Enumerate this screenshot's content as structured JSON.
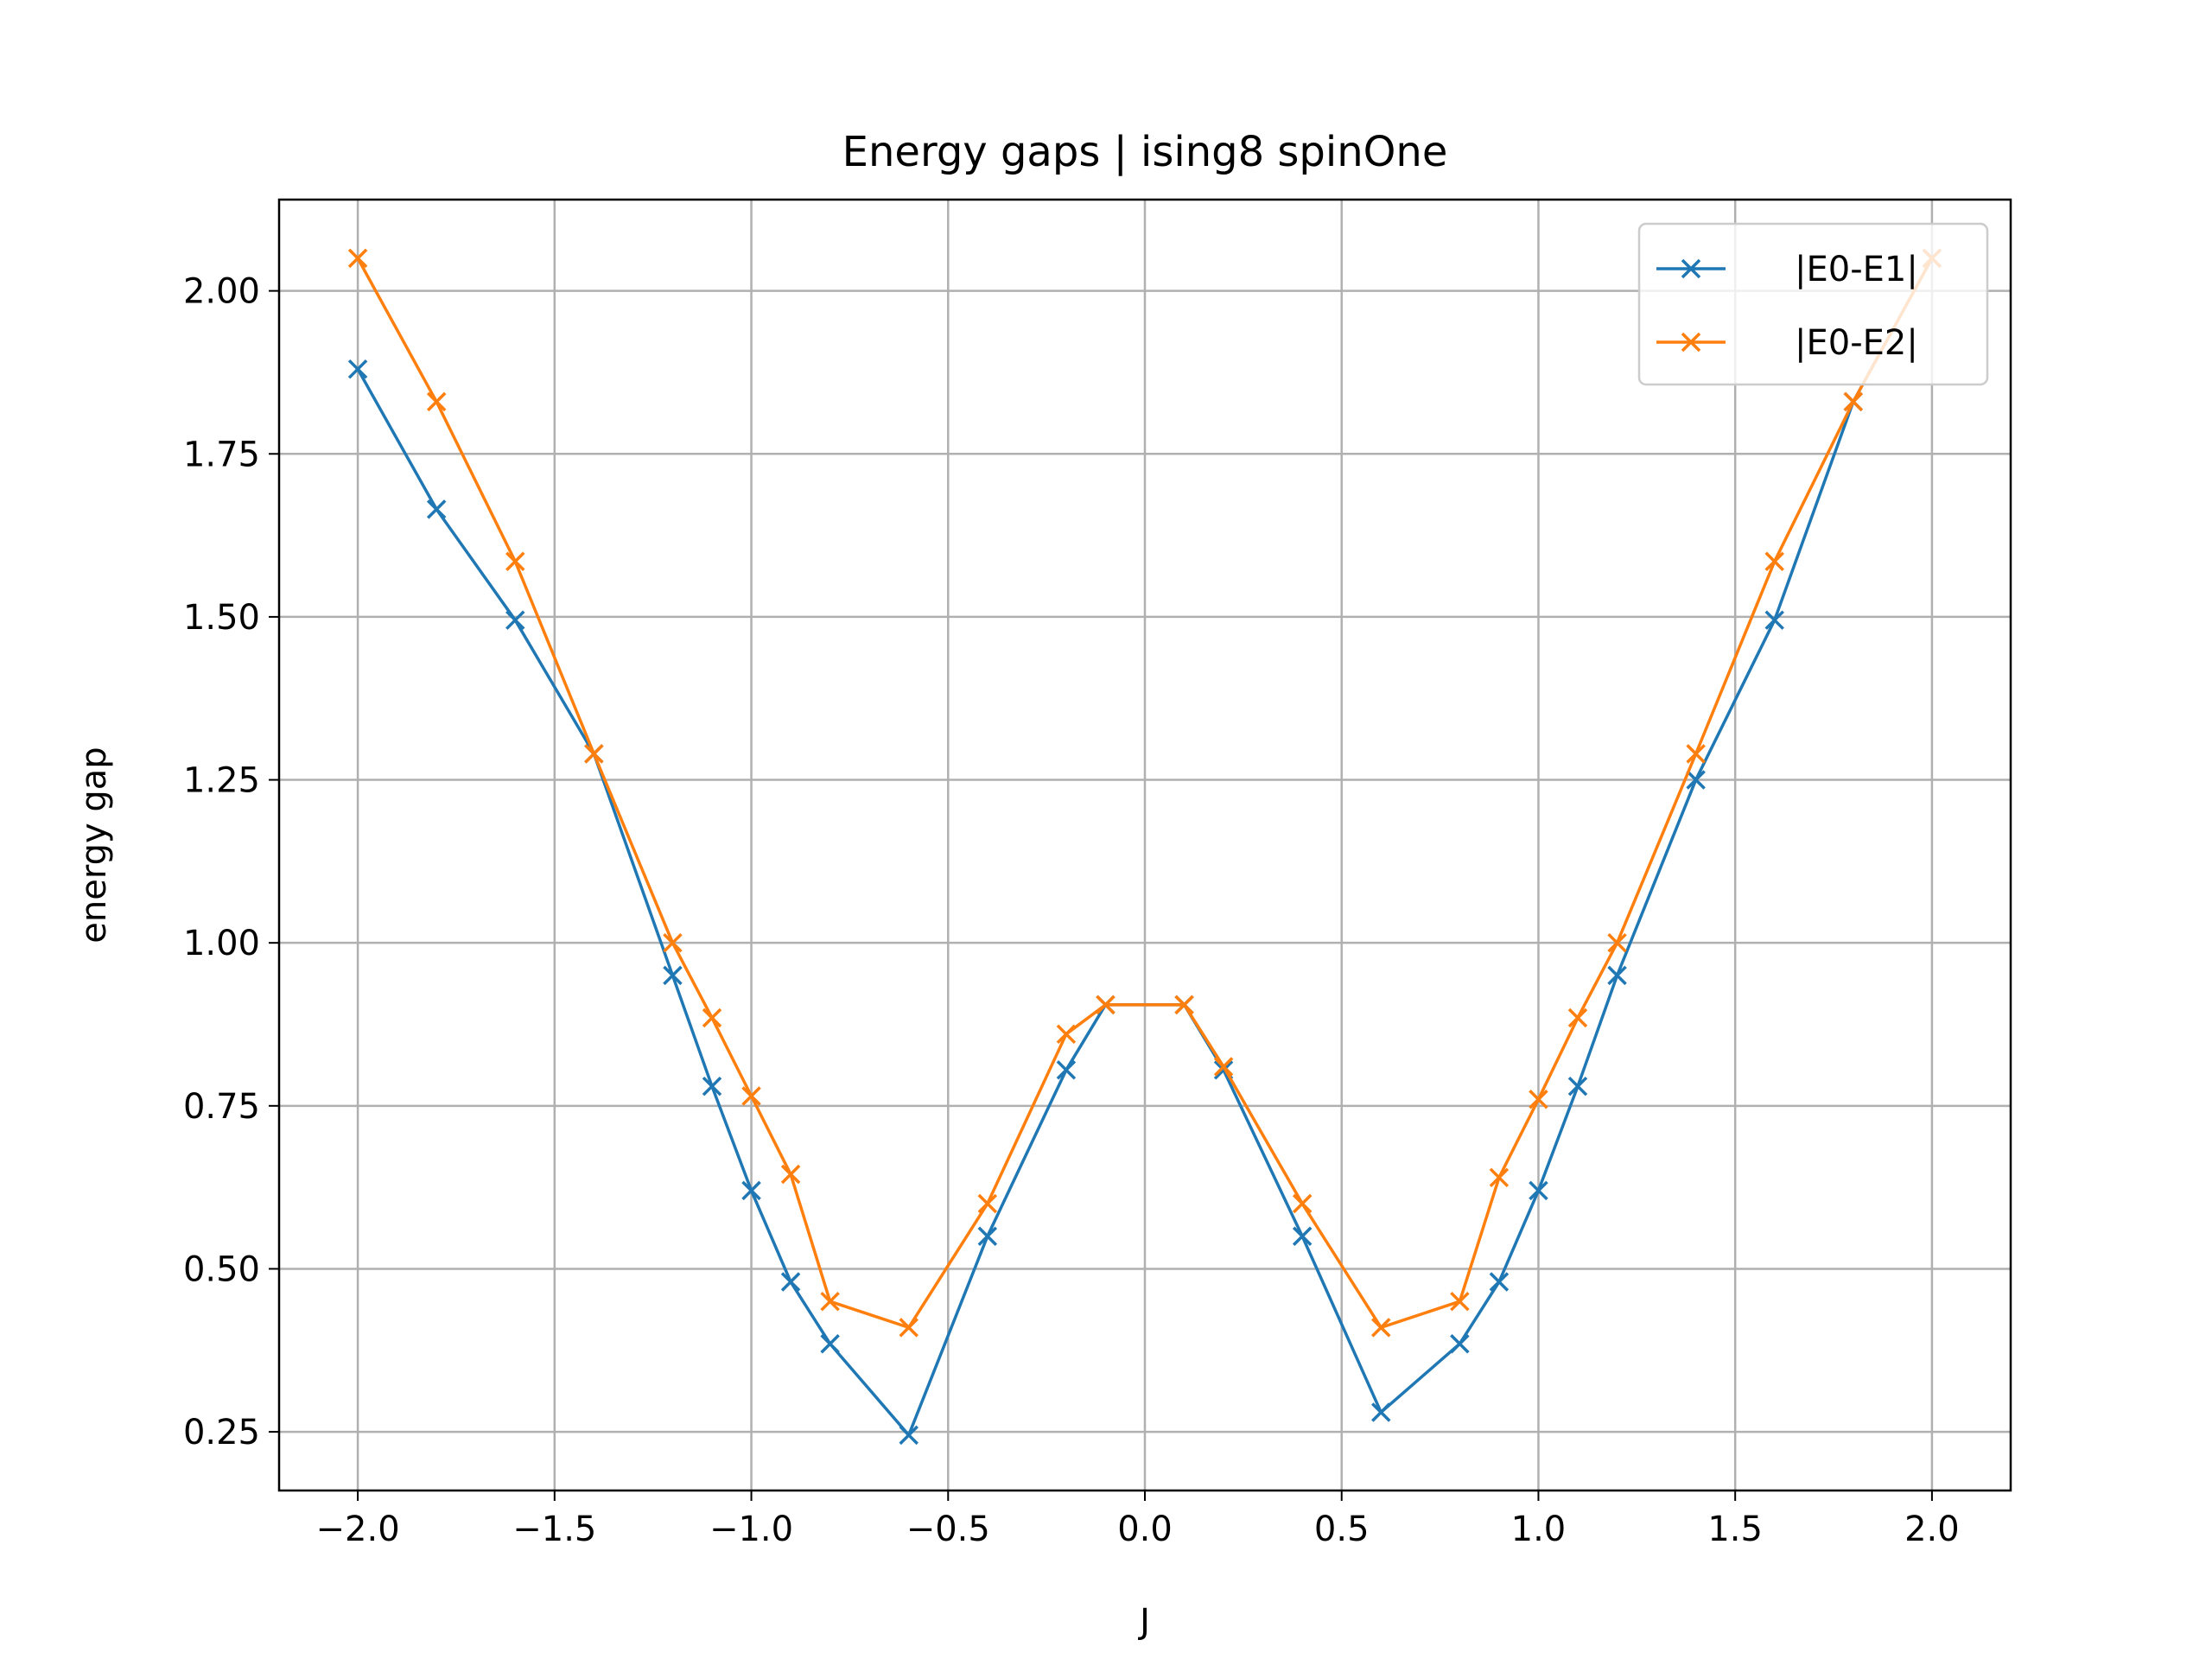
{
  "chart_data": {
    "type": "line",
    "title": "Energy gaps | ising8 spinOne",
    "xlabel": "J",
    "ylabel": "energy gap",
    "xlim": [
      -2.2,
      2.2
    ],
    "ylim": [
      0.16,
      2.14
    ],
    "xticks": [
      -2.0,
      -1.5,
      -1.0,
      -0.5,
      0.0,
      0.5,
      1.0,
      1.5,
      2.0
    ],
    "xtick_labels": [
      "−2.0",
      "−1.5",
      "−1.0",
      "−0.5",
      "0.0",
      "0.5",
      "1.0",
      "1.5",
      "2.0"
    ],
    "yticks": [
      0.25,
      0.5,
      0.75,
      1.0,
      1.25,
      1.5,
      1.75,
      2.0
    ],
    "ytick_labels": [
      "0.25",
      "0.50",
      "0.75",
      "1.00",
      "1.25",
      "1.50",
      "1.75",
      "2.00"
    ],
    "grid": true,
    "legend_position": "upper right",
    "series": [
      {
        "name": "|E0-E1|",
        "color": "#1f77b4",
        "marker": "x",
        "x": [
          -2.0,
          -1.8,
          -1.6,
          -1.4,
          -1.2,
          -1.1,
          -1.0,
          -0.9,
          -0.8,
          -0.6,
          -0.4,
          -0.2,
          -0.1,
          0.1,
          0.2,
          0.4,
          0.6,
          0.8,
          0.9,
          1.0,
          1.1,
          1.2,
          1.4,
          1.6,
          1.8,
          2.0
        ],
        "y": [
          1.88,
          1.665,
          1.495,
          1.29,
          0.95,
          0.78,
          0.62,
          0.48,
          0.385,
          0.245,
          0.55,
          0.805,
          0.905,
          0.905,
          0.805,
          0.55,
          0.28,
          0.385,
          0.48,
          0.62,
          0.78,
          0.95,
          1.25,
          1.495,
          1.83,
          2.05
        ]
      },
      {
        "name": "|E0-E2|",
        "color": "#ff7f0e",
        "marker": "x",
        "x": [
          -2.0,
          -1.8,
          -1.6,
          -1.4,
          -1.2,
          -1.1,
          -1.0,
          -0.9,
          -0.8,
          -0.6,
          -0.4,
          -0.2,
          -0.1,
          0.1,
          0.2,
          0.4,
          0.6,
          0.8,
          0.9,
          1.0,
          1.1,
          1.2,
          1.4,
          1.6,
          1.8,
          2.0
        ],
        "y": [
          2.05,
          1.83,
          1.585,
          1.29,
          1.0,
          0.885,
          0.765,
          0.645,
          0.45,
          0.41,
          0.6,
          0.86,
          0.905,
          0.905,
          0.81,
          0.6,
          0.41,
          0.45,
          0.64,
          0.76,
          0.885,
          1.0,
          1.29,
          1.585,
          1.83,
          2.05
        ]
      }
    ]
  }
}
